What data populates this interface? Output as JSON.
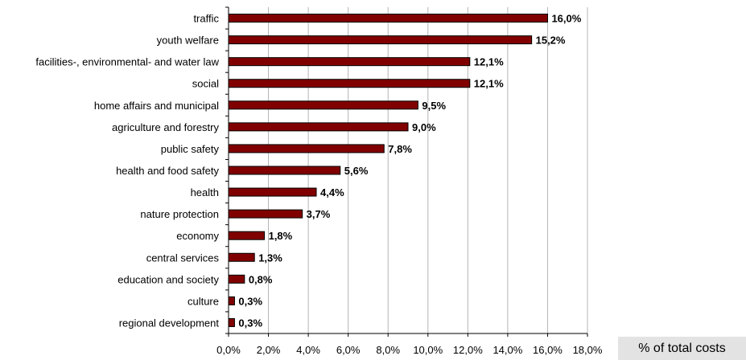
{
  "chart_data": {
    "type": "bar",
    "orientation": "horizontal",
    "categories": [
      "traffic",
      "youth welfare",
      "facilities-, environmental- and water law",
      "social",
      "home affairs and municipal",
      "agriculture and forestry",
      "public safety",
      "health and food safety",
      "health",
      "nature protection",
      "economy",
      "central services",
      "education and society",
      "culture",
      "regional development"
    ],
    "values": [
      16.0,
      15.2,
      12.1,
      12.1,
      9.5,
      9.0,
      7.8,
      5.6,
      4.4,
      3.7,
      1.8,
      1.3,
      0.8,
      0.3,
      0.3
    ],
    "value_labels": [
      "16,0%",
      "15,2%",
      "12,1%",
      "12,1%",
      "9,5%",
      "9,0%",
      "7,8%",
      "5,6%",
      "4,4%",
      "3,7%",
      "1,8%",
      "1,3%",
      "0,8%",
      "0,3%",
      "0,3%"
    ],
    "xlabel": "% of total costs",
    "ylabel": "",
    "xlim": [
      0,
      18
    ],
    "xticks": [
      0,
      2,
      4,
      6,
      8,
      10,
      12,
      14,
      16,
      18
    ],
    "xtick_labels": [
      "0,0%",
      "2,0%",
      "4,0%",
      "6,0%",
      "8,0%",
      "10,0%",
      "12,0%",
      "14,0%",
      "16,0%",
      "18,0%"
    ],
    "grid": "vertical",
    "bar_color": "#800000",
    "grid_color": "#b4b4b4",
    "xlabel_background": "#e3e3e3"
  }
}
